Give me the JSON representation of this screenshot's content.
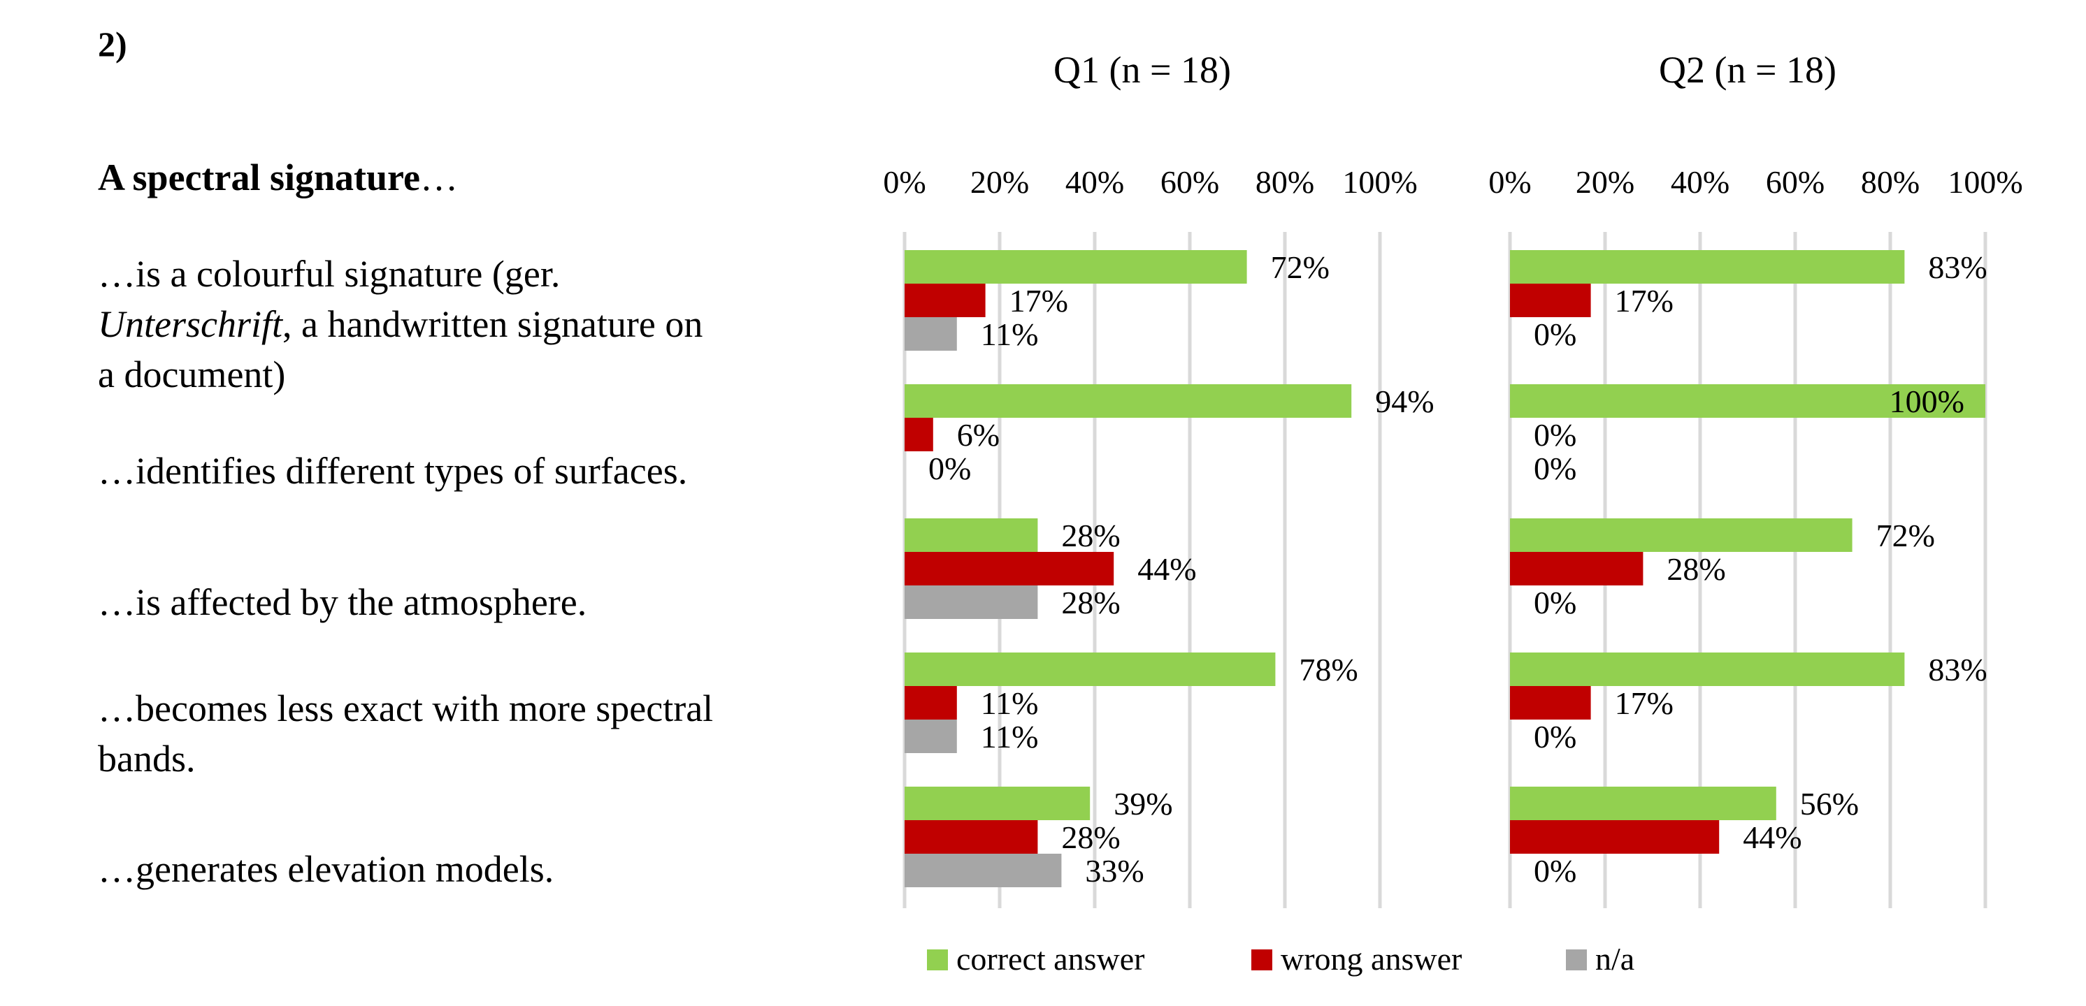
{
  "chart_data": {
    "type": "bar",
    "orientation": "horizontal",
    "figure_label": "2)",
    "heading": "A spectral signature",
    "heading_suffix": "…",
    "categories": [
      {
        "lines": [
          [
            {
              "text": "…is a colourful signature (ger."
            }
          ],
          [
            {
              "text": "Unterschrift",
              "italic": true
            },
            {
              "text": ", a handwritten signature on"
            }
          ],
          [
            {
              "text": "a document)"
            }
          ]
        ]
      },
      {
        "lines": [
          [
            {
              "text": "…identifies different types of surfaces."
            }
          ]
        ]
      },
      {
        "lines": [
          [
            {
              "text": "…is affected by the atmosphere."
            }
          ]
        ]
      },
      {
        "lines": [
          [
            {
              "text": "…becomes less exact with more spectral"
            }
          ],
          [
            {
              "text": "bands."
            }
          ]
        ]
      },
      {
        "lines": [
          [
            {
              "text": "…generates elevation models."
            }
          ]
        ]
      }
    ],
    "x_ticks": [
      "0%",
      "20%",
      "40%",
      "60%",
      "80%",
      "100%"
    ],
    "xlim": [
      0,
      100
    ],
    "grid": true,
    "legend_position": "bottom",
    "colors": {
      "correct": "#92d050",
      "wrong": "#c00000",
      "na": "#a6a6a6",
      "grid": "#d9d9d9"
    },
    "legend": [
      {
        "key": "correct",
        "label": "correct answer"
      },
      {
        "key": "wrong",
        "label": "wrong answer"
      },
      {
        "key": "na",
        "label": "n/a"
      }
    ],
    "panels": [
      {
        "title": "Q1 (n = 18)",
        "series": [
          {
            "key": "correct",
            "name": "correct answer",
            "values": [
              72,
              94,
              28,
              78,
              39
            ]
          },
          {
            "key": "wrong",
            "name": "wrong answer",
            "values": [
              17,
              6,
              44,
              11,
              28
            ]
          },
          {
            "key": "na",
            "name": "n/a",
            "values": [
              11,
              0,
              28,
              11,
              33
            ]
          }
        ]
      },
      {
        "title": "Q2 (n = 18)",
        "series": [
          {
            "key": "correct",
            "name": "correct answer",
            "values": [
              83,
              100,
              72,
              83,
              56
            ]
          },
          {
            "key": "wrong",
            "name": "wrong answer",
            "values": [
              17,
              0,
              28,
              17,
              44
            ]
          },
          {
            "key": "na",
            "name": "n/a",
            "values": [
              0,
              0,
              0,
              0,
              0
            ]
          }
        ]
      }
    ]
  }
}
